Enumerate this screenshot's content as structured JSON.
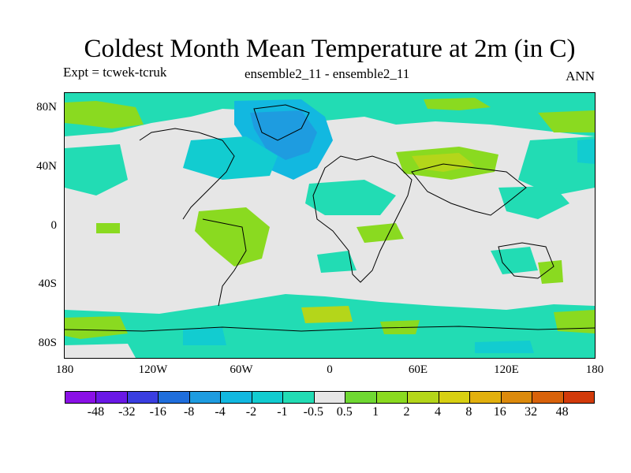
{
  "title": "Coldest Month Mean Temperature at 2m (in C)",
  "expt": "Expt = tcwek-tcruk",
  "ensemble": "ensemble2_11 - ensemble2_11",
  "season": "ANN",
  "lat_labels": [
    "80N",
    "40N",
    "0",
    "40S",
    "80S"
  ],
  "lon_labels": [
    "180",
    "120W",
    "60W",
    "0",
    "60E",
    "120E",
    "180"
  ],
  "colorbar": {
    "colors": [
      "#8a10e6",
      "#6a18e6",
      "#3a3ee0",
      "#1f6edc",
      "#1e9ce0",
      "#12b8e0",
      "#12ccd0",
      "#22dcb4",
      "#e6e6e6",
      "#6fd832",
      "#8ada20",
      "#b4d61a",
      "#d8d012",
      "#e2b00e",
      "#dc8a0c",
      "#d8620a",
      "#d23a0a"
    ],
    "labels": [
      "-48",
      "-32",
      "-16",
      "-8",
      "-4",
      "-2",
      "-1",
      "-0.5",
      "0.5",
      "1",
      "2",
      "4",
      "8",
      "16",
      "32",
      "48"
    ]
  }
}
